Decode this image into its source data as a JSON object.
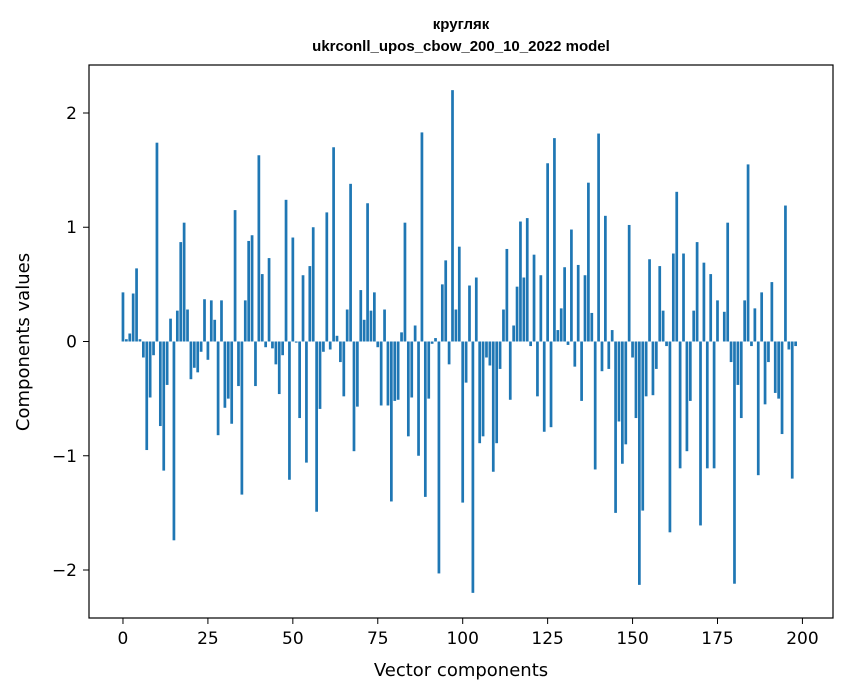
{
  "chart_data": {
    "type": "bar",
    "title": "кругляк",
    "subtitle": "ukrconll_upos_cbow_200_10_2022 model",
    "xlabel": "Vector components",
    "ylabel": "Components values",
    "xlim": [
      -10,
      209
    ],
    "ylim": [
      -2.42,
      2.42
    ],
    "xticks": [
      0,
      25,
      50,
      75,
      100,
      125,
      150,
      175,
      200
    ],
    "yticks": [
      -2,
      -1,
      0,
      1,
      2
    ],
    "ytick_labels": [
      "−2",
      "−1",
      "0",
      "1",
      "2"
    ],
    "grid": false,
    "color": "#1f77b4",
    "series": [
      {
        "name": "кругляк",
        "values": [
          0.43,
          0.02,
          0.07,
          0.42,
          0.64,
          0.02,
          -0.14,
          -0.95,
          -0.49,
          -0.12,
          1.74,
          -0.74,
          -1.13,
          -0.38,
          0.2,
          -1.74,
          0.27,
          0.87,
          1.04,
          0.28,
          -0.33,
          -0.23,
          -0.27,
          -0.09,
          0.37,
          -0.16,
          0.36,
          0.19,
          -0.82,
          0.36,
          -0.58,
          -0.5,
          -0.72,
          1.15,
          -0.39,
          -1.34,
          0.36,
          0.88,
          0.93,
          -0.39,
          1.63,
          0.59,
          -0.05,
          0.73,
          -0.06,
          -0.2,
          -0.46,
          -0.12,
          1.24,
          -1.21,
          0.91,
          -0.01,
          -0.67,
          0.58,
          -1.06,
          0.66,
          1.0,
          -1.49,
          -0.59,
          -0.09,
          1.13,
          -0.07,
          1.7,
          0.05,
          -0.18,
          -0.48,
          0.28,
          1.38,
          -0.96,
          -0.57,
          0.45,
          0.19,
          1.21,
          0.27,
          0.43,
          -0.05,
          -0.56,
          0.28,
          -0.56,
          -1.4,
          -0.52,
          -0.51,
          0.08,
          1.04,
          -0.83,
          -0.49,
          0.14,
          -1.0,
          1.83,
          -1.36,
          -0.5,
          -0.02,
          0.03,
          -2.03,
          0.5,
          0.71,
          -0.2,
          2.2,
          0.28,
          0.83,
          -1.41,
          -0.36,
          0.49,
          -2.2,
          0.56,
          -0.89,
          -0.83,
          -0.14,
          -0.21,
          -1.14,
          -0.89,
          -0.24,
          0.28,
          0.81,
          -0.51,
          0.14,
          0.48,
          1.05,
          0.56,
          1.08,
          -0.04,
          0.76,
          -0.48,
          0.58,
          -0.79,
          1.56,
          -0.75,
          1.78,
          0.1,
          0.29,
          0.65,
          -0.03,
          0.98,
          -0.22,
          0.67,
          -0.52,
          0.58,
          1.39,
          0.25,
          -1.12,
          1.82,
          -0.26,
          1.1,
          -0.24,
          0.1,
          -1.5,
          -0.7,
          -1.07,
          -0.9,
          1.02,
          -0.14,
          -0.67,
          -2.13,
          -1.48,
          -0.48,
          0.72,
          -0.47,
          -0.24,
          0.66,
          0.27,
          -0.04,
          -1.67,
          0.77,
          1.31,
          -1.11,
          0.77,
          -0.96,
          -0.52,
          0.27,
          0.87,
          -1.61,
          0.69,
          -1.11,
          0.59,
          -1.11,
          0.36,
          0.0,
          0.26,
          1.04,
          -0.18,
          -2.12,
          -0.38,
          -0.67,
          0.36,
          1.55,
          -0.04,
          0.29,
          -1.17,
          0.43,
          -0.55,
          -0.18,
          0.52,
          -0.45,
          -0.5,
          -0.81,
          1.19,
          -0.07,
          -1.2,
          -0.04
        ]
      }
    ]
  }
}
